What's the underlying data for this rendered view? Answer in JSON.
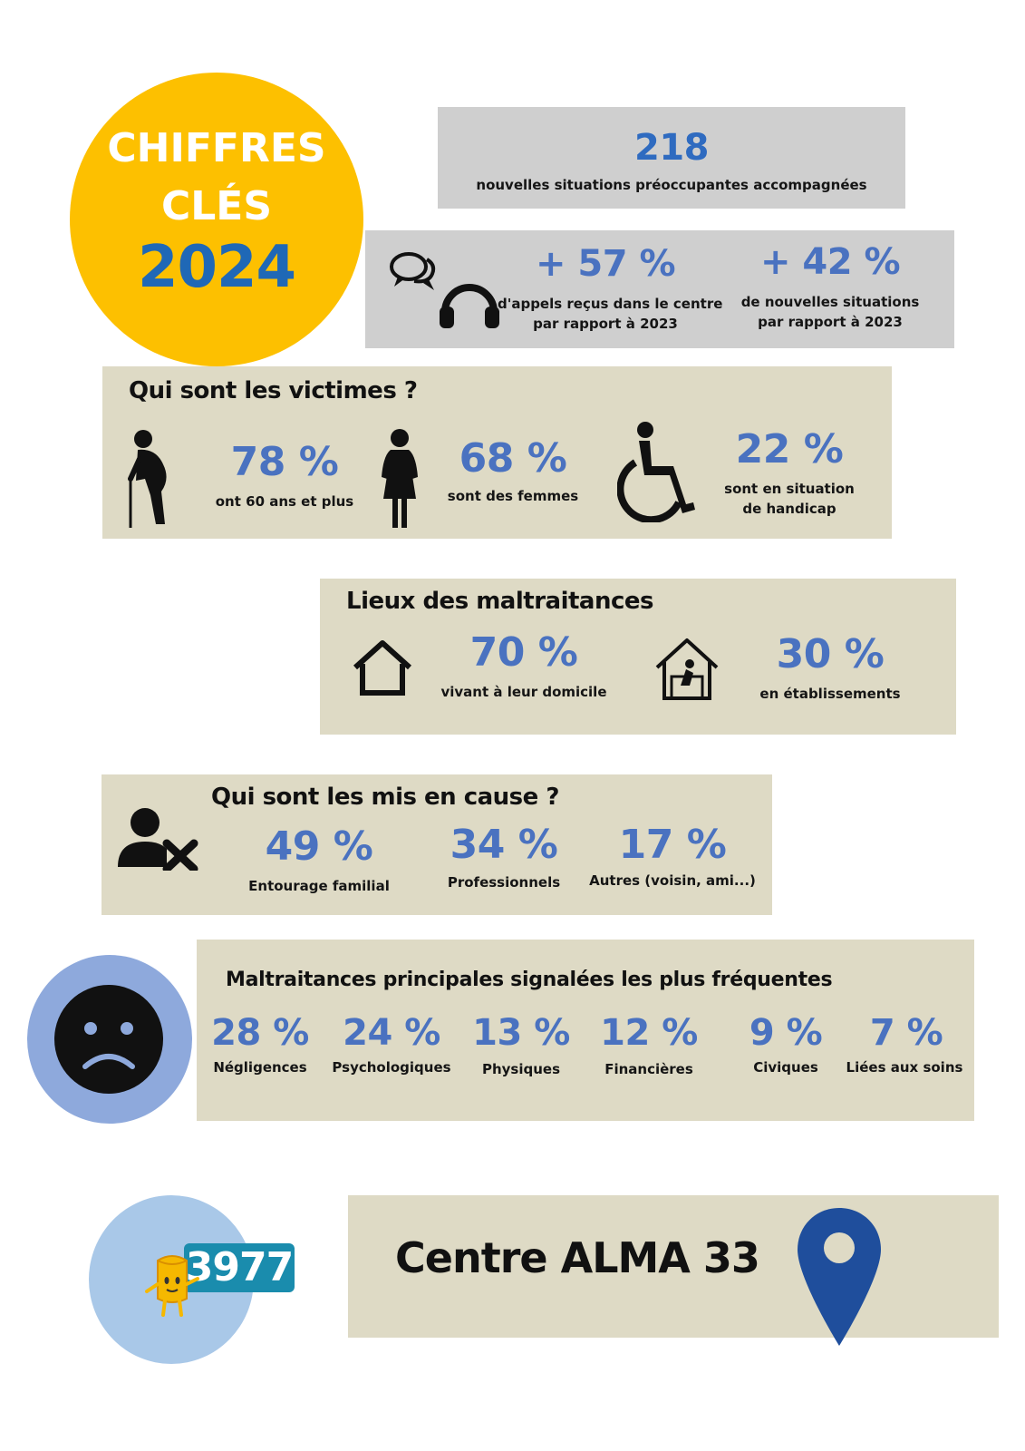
{
  "header": {
    "line1": "CHIFFRES",
    "line2": "CLÉS",
    "year": "2024"
  },
  "stat_new": {
    "value": "218",
    "label": "nouvelles situations préoccupantes accompagnées"
  },
  "stat_calls": {
    "value": "+ 57 %",
    "label_line1": "d'appels reçus dans le centre",
    "label_line2": "par rapport à 2023"
  },
  "stat_situations": {
    "value": "+ 42 %",
    "label_line1": "de nouvelles situations",
    "label_line2": "par rapport à 2023"
  },
  "victims": {
    "title": "Qui sont les victimes ?",
    "items": [
      {
        "value": "78 %",
        "label_line1": "ont 60 ans et plus",
        "label_line2": ""
      },
      {
        "value": "68 %",
        "label_line1": "sont des femmes",
        "label_line2": ""
      },
      {
        "value": "22 %",
        "label_line1": "sont en situation",
        "label_line2": "de handicap"
      }
    ]
  },
  "places": {
    "title": "Lieux des maltraitances",
    "items": [
      {
        "value": "70 %",
        "label": "vivant à leur domicile"
      },
      {
        "value": "30 %",
        "label": "en établissements"
      }
    ]
  },
  "accused": {
    "title": "Qui sont les mis en cause ?",
    "items": [
      {
        "value": "49 %",
        "label": "Entourage familial"
      },
      {
        "value": "34 %",
        "label": "Professionnels"
      },
      {
        "value": "17 %",
        "label": "Autres (voisin, ami...)"
      }
    ]
  },
  "abuse": {
    "title": "Maltraitances principales signalées les plus fréquentes",
    "items": [
      {
        "value": "28 %",
        "label": "Négligences"
      },
      {
        "value": "24 %",
        "label": "Psychologiques"
      },
      {
        "value": "13 %",
        "label": "Physiques"
      },
      {
        "value": "12 %",
        "label": "Financières"
      },
      {
        "value": "9 %",
        "label": "Civiques"
      },
      {
        "value": "7 %",
        "label": "Liées aux soins"
      }
    ]
  },
  "footer": {
    "badge": "3977",
    "center": "Centre ALMA 33"
  },
  "icons": {
    "chat": "chat-bubbles-icon",
    "headset": "headset-icon",
    "elderly": "elderly-person-icon",
    "woman": "woman-icon",
    "wheelchair": "wheelchair-icon",
    "home": "home-icon",
    "institution": "care-home-icon",
    "user_x": "user-remove-icon",
    "sad": "sad-face-icon",
    "mascot": "mascot-icon",
    "pin": "location-pin-icon"
  },
  "colors": {
    "yellow": "#fdc000",
    "blue_text": "#4a72c0",
    "year_blue": "#1f68b6",
    "gray_box": "#cfcfcf",
    "beige_box": "#dedac5",
    "pin_blue": "#1f4e9c",
    "badge_teal": "#1a8cad"
  }
}
